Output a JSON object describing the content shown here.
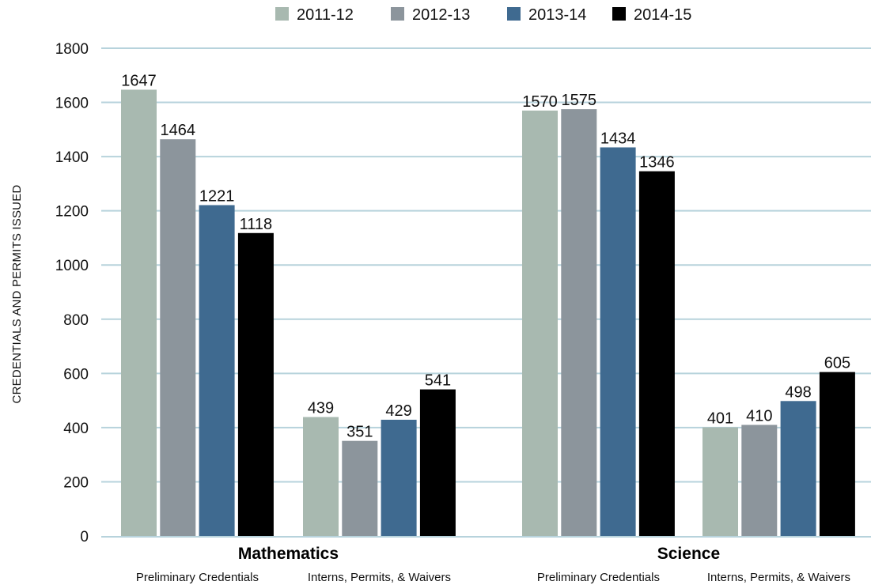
{
  "chart_data": {
    "type": "bar",
    "ylabel": "CREDENTIALS AND PERMITS ISSUED",
    "ylim": [
      0,
      1800
    ],
    "yticks": [
      0,
      200,
      400,
      600,
      800,
      1000,
      1200,
      1400,
      1600,
      1800
    ],
    "grid": true,
    "legend_position": "top",
    "groups": [
      "Mathematics",
      "Science"
    ],
    "categories": [
      {
        "group": "Mathematics",
        "label": "Preliminary Credentials"
      },
      {
        "group": "Mathematics",
        "label": "Interns, Permits, & Waivers"
      },
      {
        "group": "Science",
        "label": "Preliminary Credentials"
      },
      {
        "group": "Science",
        "label": "Interns, Permits, & Waivers"
      }
    ],
    "series": [
      {
        "name": "2011-12",
        "color": "#a8b9b0",
        "values": [
          1647,
          439,
          1570,
          401
        ]
      },
      {
        "name": "2012-13",
        "color": "#8c959c",
        "values": [
          1464,
          351,
          1575,
          410
        ]
      },
      {
        "name": "2013-14",
        "color": "#3f6a90",
        "values": [
          1221,
          429,
          1434,
          498
        ]
      },
      {
        "name": "2014-15",
        "color": "#000000",
        "values": [
          1118,
          541,
          1346,
          605
        ]
      }
    ],
    "gridline_color": "#b7d3dc"
  }
}
